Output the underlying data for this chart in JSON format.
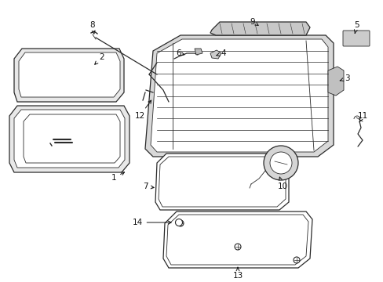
{
  "bg_color": "#ffffff",
  "line_color": "#2a2a2a",
  "text_color": "#111111",
  "fig_width": 4.89,
  "fig_height": 3.6,
  "dpi": 100,
  "lw_thin": 0.6,
  "lw_med": 0.9,
  "lw_thick": 1.2,
  "label_fontsize": 7.5
}
